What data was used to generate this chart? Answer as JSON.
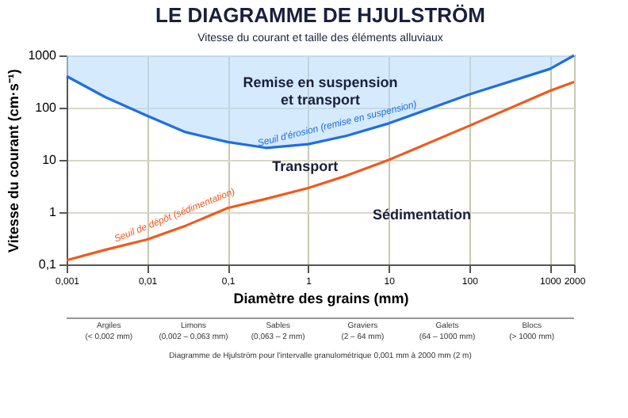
{
  "chart_data": {
    "type": "line",
    "title": "LE DIAGRAMME DE HJULSTRÖM",
    "subtitle": "Vitesse du courant et taille des éléments alluviaux",
    "xlabel": "Diamètre des grains (mm)",
    "ylabel": "Vitesse du courant (cm·s⁻¹)",
    "log": "xy",
    "x": [
      0.001,
      0.003,
      0.01,
      0.03,
      0.1,
      0.3,
      1,
      3,
      10,
      100,
      1000,
      2000
    ],
    "series": [
      {
        "name": "Seuil d'érosion (remise en suspension)",
        "color": "#1f6fe0",
        "values": [
          400,
          160,
          70,
          34,
          22,
          17,
          20,
          29,
          50,
          180,
          550,
          1000
        ]
      },
      {
        "name": "Seuil de dépôt (sédimentation)",
        "color": "#f05a1e",
        "values": [
          0.12,
          0.19,
          0.3,
          0.55,
          1.2,
          1.8,
          2.9,
          5,
          10,
          45,
          210,
          310
        ]
      }
    ],
    "xlim": [
      0.001,
      2000
    ],
    "ylim": [
      0.1,
      1000
    ],
    "xticks": [
      {
        "value": 0.001,
        "label": "0,001"
      },
      {
        "value": 0.01,
        "label": "0,01"
      },
      {
        "value": 0.1,
        "label": "0,1"
      },
      1,
      10,
      100,
      1000,
      2000
    ],
    "yticks": [
      {
        "value": 0.1,
        "label": "0,1"
      },
      1,
      10,
      100,
      1000
    ],
    "grid": true,
    "marker": "none",
    "line_style": "solid",
    "annotations": [
      "Remise en suspension\net transport",
      "Transport",
      "Sédimentation",
      "Argiles\n(< 0,002 mm)",
      "Limons\n(0,002 – 0,063 mm)",
      "Sables\n(0,063 – 2 mm)",
      "Graviers\n(2 – 64 mm)",
      "Galets\n(64 – 1000 mm)",
      "Blocs\n(> 1000 mm)",
      "Diagramme de Hjulström pour l'intervalle granulométrique 0,001 mm à 2000 mm (2 m)"
    ]
  }
}
